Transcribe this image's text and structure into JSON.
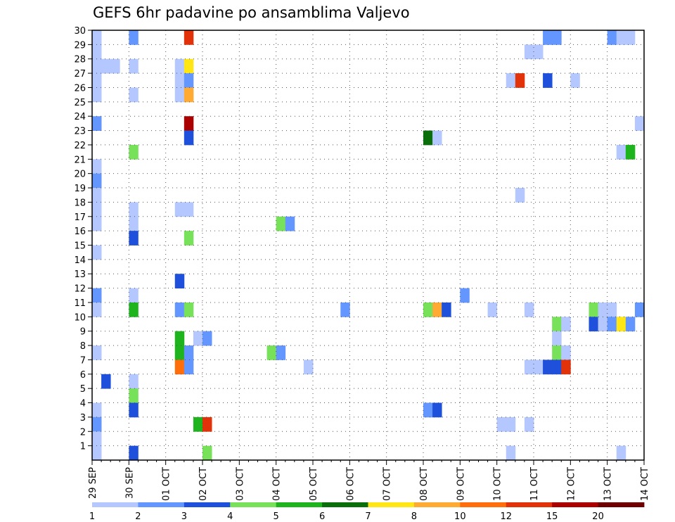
{
  "chart_data": {
    "type": "heatmap",
    "title": "GEFS 6hr padavine po ansamblima Valjevo",
    "xlabel": "",
    "ylabel": "",
    "x_ticks": [
      "29 SEP",
      "30 SEP",
      "01 OCT",
      "02 OCT",
      "03 OCT",
      "04 OCT",
      "05 OCT",
      "06 OCT",
      "07 OCT",
      "08 OCT",
      "09 OCT",
      "10 OCT",
      "11 OCT",
      "12 OCT",
      "13 OCT",
      "14 OCT"
    ],
    "y_ticks": [
      1,
      2,
      3,
      4,
      5,
      6,
      7,
      8,
      9,
      10,
      11,
      12,
      13,
      14,
      15,
      16,
      17,
      18,
      19,
      20,
      21,
      22,
      23,
      24,
      25,
      26,
      27,
      28,
      29,
      30
    ],
    "xlim_steps": [
      0,
      60
    ],
    "ylim": [
      0,
      30
    ],
    "grid": true,
    "colorbar": {
      "colors": [
        "#b4c8ff",
        "#6496ff",
        "#1e50dc",
        "#78e15a",
        "#1eb41e",
        "#0a6e0a",
        "#ffe614",
        "#ffaa32",
        "#ff6e0a",
        "#e1320a",
        "#aa0000",
        "#6e0000"
      ],
      "labels": [
        "1",
        "2",
        "3",
        "4",
        "5",
        "6",
        "7",
        "8",
        "10",
        "12",
        "15",
        "20"
      ]
    },
    "cells": [
      {
        "m": 30,
        "s": 0,
        "c": 1
      },
      {
        "m": 30,
        "s": 4,
        "c": 2
      },
      {
        "m": 30,
        "s": 10,
        "c": 10
      },
      {
        "m": 30,
        "s": 49,
        "c": 2
      },
      {
        "m": 30,
        "s": 50,
        "c": 2
      },
      {
        "m": 30,
        "s": 56,
        "c": 2
      },
      {
        "m": 30,
        "s": 57,
        "c": 1
      },
      {
        "m": 30,
        "s": 58,
        "c": 1
      },
      {
        "m": 29,
        "s": 0,
        "c": 1
      },
      {
        "m": 29,
        "s": 47,
        "c": 1
      },
      {
        "m": 29,
        "s": 48,
        "c": 1
      },
      {
        "m": 28,
        "s": 0,
        "c": 1
      },
      {
        "m": 28,
        "s": 1,
        "c": 1
      },
      {
        "m": 28,
        "s": 2,
        "c": 1
      },
      {
        "m": 28,
        "s": 4,
        "c": 1
      },
      {
        "m": 28,
        "s": 9,
        "c": 1
      },
      {
        "m": 28,
        "s": 10,
        "c": 7
      },
      {
        "m": 27,
        "s": 0,
        "c": 1
      },
      {
        "m": 27,
        "s": 9,
        "c": 1
      },
      {
        "m": 27,
        "s": 10,
        "c": 2
      },
      {
        "m": 27,
        "s": 45,
        "c": 1
      },
      {
        "m": 27,
        "s": 46,
        "c": 10
      },
      {
        "m": 27,
        "s": 49,
        "c": 3
      },
      {
        "m": 27,
        "s": 52,
        "c": 1
      },
      {
        "m": 26,
        "s": 0,
        "c": 1
      },
      {
        "m": 26,
        "s": 4,
        "c": 1
      },
      {
        "m": 26,
        "s": 9,
        "c": 1
      },
      {
        "m": 26,
        "s": 10,
        "c": 8
      },
      {
        "m": 24,
        "s": 0,
        "c": 2
      },
      {
        "m": 24,
        "s": 10,
        "c": 11
      },
      {
        "m": 24,
        "s": 59,
        "c": 1
      },
      {
        "m": 23,
        "s": 10,
        "c": 3
      },
      {
        "m": 23,
        "s": 36,
        "c": 6
      },
      {
        "m": 23,
        "s": 37,
        "c": 1
      },
      {
        "m": 22,
        "s": 4,
        "c": 4
      },
      {
        "m": 22,
        "s": 57,
        "c": 1
      },
      {
        "m": 22,
        "s": 58,
        "c": 5
      },
      {
        "m": 21,
        "s": 0,
        "c": 1
      },
      {
        "m": 20,
        "s": 0,
        "c": 2
      },
      {
        "m": 19,
        "s": 0,
        "c": 1
      },
      {
        "m": 19,
        "s": 46,
        "c": 1
      },
      {
        "m": 18,
        "s": 0,
        "c": 1
      },
      {
        "m": 18,
        "s": 4,
        "c": 1
      },
      {
        "m": 18,
        "s": 9,
        "c": 1
      },
      {
        "m": 18,
        "s": 10,
        "c": 1
      },
      {
        "m": 17,
        "s": 0,
        "c": 1
      },
      {
        "m": 17,
        "s": 4,
        "c": 1
      },
      {
        "m": 17,
        "s": 20,
        "c": 4
      },
      {
        "m": 17,
        "s": 21,
        "c": 2
      },
      {
        "m": 16,
        "s": 4,
        "c": 3
      },
      {
        "m": 16,
        "s": 10,
        "c": 4
      },
      {
        "m": 15,
        "s": 0,
        "c": 1
      },
      {
        "m": 13,
        "s": 9,
        "c": 3
      },
      {
        "m": 12,
        "s": 0,
        "c": 2
      },
      {
        "m": 12,
        "s": 4,
        "c": 1
      },
      {
        "m": 12,
        "s": 40,
        "c": 2
      },
      {
        "m": 11,
        "s": 0,
        "c": 1
      },
      {
        "m": 11,
        "s": 4,
        "c": 5
      },
      {
        "m": 11,
        "s": 9,
        "c": 2
      },
      {
        "m": 11,
        "s": 10,
        "c": 4
      },
      {
        "m": 11,
        "s": 27,
        "c": 2
      },
      {
        "m": 11,
        "s": 36,
        "c": 4
      },
      {
        "m": 11,
        "s": 37,
        "c": 8
      },
      {
        "m": 11,
        "s": 38,
        "c": 3
      },
      {
        "m": 11,
        "s": 43,
        "c": 1
      },
      {
        "m": 11,
        "s": 47,
        "c": 1
      },
      {
        "m": 11,
        "s": 54,
        "c": 4
      },
      {
        "m": 11,
        "s": 55,
        "c": 1
      },
      {
        "m": 11,
        "s": 56,
        "c": 1
      },
      {
        "m": 11,
        "s": 59,
        "c": 2
      },
      {
        "m": 10,
        "s": 50,
        "c": 4
      },
      {
        "m": 10,
        "s": 51,
        "c": 1
      },
      {
        "m": 10,
        "s": 54,
        "c": 3
      },
      {
        "m": 10,
        "s": 55,
        "c": 1
      },
      {
        "m": 10,
        "s": 56,
        "c": 2
      },
      {
        "m": 10,
        "s": 57,
        "c": 7
      },
      {
        "m": 10,
        "s": 58,
        "c": 2
      },
      {
        "m": 9,
        "s": 9,
        "c": 5
      },
      {
        "m": 9,
        "s": 11,
        "c": 1
      },
      {
        "m": 9,
        "s": 12,
        "c": 2
      },
      {
        "m": 9,
        "s": 50,
        "c": 1
      },
      {
        "m": 8,
        "s": 0,
        "c": 1
      },
      {
        "m": 8,
        "s": 9,
        "c": 5
      },
      {
        "m": 8,
        "s": 10,
        "c": 2
      },
      {
        "m": 8,
        "s": 19,
        "c": 4
      },
      {
        "m": 8,
        "s": 20,
        "c": 2
      },
      {
        "m": 8,
        "s": 50,
        "c": 4
      },
      {
        "m": 8,
        "s": 51,
        "c": 1
      },
      {
        "m": 7,
        "s": 9,
        "c": 9
      },
      {
        "m": 7,
        "s": 10,
        "c": 2
      },
      {
        "m": 7,
        "s": 23,
        "c": 1
      },
      {
        "m": 7,
        "s": 47,
        "c": 1
      },
      {
        "m": 7,
        "s": 48,
        "c": 1
      },
      {
        "m": 7,
        "s": 49,
        "c": 3
      },
      {
        "m": 7,
        "s": 50,
        "c": 3
      },
      {
        "m": 7,
        "s": 51,
        "c": 10
      },
      {
        "m": 6,
        "s": 1,
        "c": 3
      },
      {
        "m": 6,
        "s": 4,
        "c": 1
      },
      {
        "m": 5,
        "s": 4,
        "c": 4
      },
      {
        "m": 4,
        "s": 0,
        "c": 1
      },
      {
        "m": 4,
        "s": 4,
        "c": 3
      },
      {
        "m": 4,
        "s": 36,
        "c": 2
      },
      {
        "m": 4,
        "s": 37,
        "c": 3
      },
      {
        "m": 3,
        "s": 0,
        "c": 2
      },
      {
        "m": 3,
        "s": 11,
        "c": 5
      },
      {
        "m": 3,
        "s": 12,
        "c": 10
      },
      {
        "m": 3,
        "s": 44,
        "c": 1
      },
      {
        "m": 3,
        "s": 45,
        "c": 1
      },
      {
        "m": 3,
        "s": 47,
        "c": 1
      },
      {
        "m": 2,
        "s": 0,
        "c": 1
      },
      {
        "m": 1,
        "s": 0,
        "c": 1
      },
      {
        "m": 1,
        "s": 4,
        "c": 3
      },
      {
        "m": 1,
        "s": 12,
        "c": 4
      },
      {
        "m": 1,
        "s": 45,
        "c": 1
      },
      {
        "m": 1,
        "s": 57,
        "c": 1
      }
    ]
  }
}
